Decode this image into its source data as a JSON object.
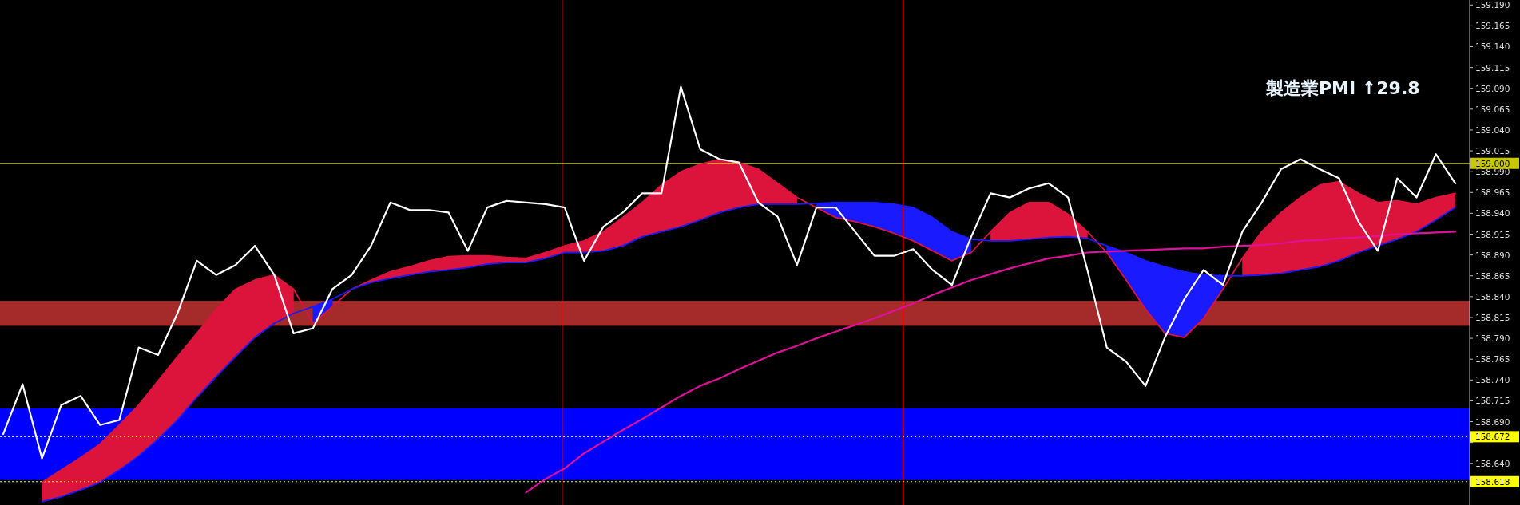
{
  "chart_data": {
    "type": "line",
    "tick_labels": "y",
    "categories": [
      null,
      null,
      null,
      null,
      null,
      null,
      null,
      null,
      null,
      null,
      null,
      null,
      null,
      null,
      null,
      null,
      null,
      null,
      null,
      null,
      null,
      null,
      null,
      null,
      null,
      null,
      null,
      null,
      null,
      null,
      null,
      null,
      null,
      null,
      null,
      null,
      null,
      null,
      null,
      null,
      null,
      null,
      null,
      null,
      null,
      null,
      null,
      null,
      null,
      null,
      null,
      null,
      null,
      null,
      null,
      null,
      null,
      null,
      null,
      null,
      null,
      null,
      null,
      null,
      null,
      null,
      null,
      null,
      null,
      null,
      null,
      null,
      null,
      null,
      null,
      null
    ],
    "ylim": [
      158.59,
      159.196
    ],
    "yticks": [
      {
        "value": 158.64,
        "label": "158.640"
      },
      {
        "value": 158.665,
        "label": null
      },
      {
        "value": 158.69,
        "label": "158.690"
      },
      {
        "value": 158.715,
        "label": "158.715"
      },
      {
        "value": 158.74,
        "label": "158.740"
      },
      {
        "value": 158.765,
        "label": "158.765"
      },
      {
        "value": 158.79,
        "label": "158.790"
      },
      {
        "value": 158.815,
        "label": "158.815"
      },
      {
        "value": 158.84,
        "label": "158.840"
      },
      {
        "value": 158.865,
        "label": "158.865"
      },
      {
        "value": 158.89,
        "label": "158.890"
      },
      {
        "value": 158.915,
        "label": "158.915"
      },
      {
        "value": 158.94,
        "label": "158.940"
      },
      {
        "value": 158.965,
        "label": "158.965"
      },
      {
        "value": 158.99,
        "label": "158.990"
      },
      {
        "value": 159.015,
        "label": "159.015"
      },
      {
        "value": 159.04,
        "label": "159.040"
      },
      {
        "value": 159.065,
        "label": "159.065"
      },
      {
        "value": 159.09,
        "label": "159.090"
      },
      {
        "value": 159.115,
        "label": "159.115"
      },
      {
        "value": 159.14,
        "label": "159.140"
      },
      {
        "value": 159.165,
        "label": "159.165"
      },
      {
        "value": 159.19,
        "label": "159.190"
      }
    ],
    "bands": [
      {
        "axis": "y",
        "from": 158.805,
        "to": 158.835,
        "color": "#a52a2a"
      },
      {
        "axis": "y",
        "from": 158.62,
        "to": 158.677,
        "color": "#0000ff"
      },
      {
        "axis": "y",
        "from": 158.677,
        "to": 158.706,
        "color": "#0000ff"
      }
    ],
    "ref_lines": [
      {
        "axis": "y",
        "value": 159.0,
        "label": "159.000",
        "color": "#c8c800",
        "line_style": "solid"
      },
      {
        "axis": "y",
        "value": 158.672,
        "label": "158.672",
        "color": "#ffff00",
        "line_style": "dotted"
      },
      {
        "axis": "y",
        "value": 158.618,
        "label": "158.618",
        "color": "#ffff00",
        "line_style": "dotted"
      }
    ],
    "annotations": [
      "製造業PMI ↑29.8"
    ],
    "series": [
      {
        "color": "#dc143c",
        "values": [
          null,
          null,
          158.617,
          158.632,
          158.647,
          158.663,
          158.686,
          158.71,
          158.739,
          158.768,
          158.796,
          158.825,
          158.849,
          158.86,
          158.866,
          158.849,
          158.808,
          158.828,
          158.849,
          158.86,
          158.87,
          158.876,
          158.883,
          158.888,
          158.889,
          158.889,
          158.887,
          158.886,
          158.893,
          158.901,
          158.907,
          158.918,
          158.935,
          158.953,
          158.974,
          158.99,
          158.999,
          159.005,
          159.001,
          158.993,
          158.976,
          158.959,
          158.947,
          158.935,
          158.93,
          158.924,
          158.916,
          158.907,
          158.895,
          158.883,
          158.893,
          158.918,
          158.941,
          158.953,
          158.953,
          158.939,
          158.918,
          158.893,
          158.86,
          158.825,
          158.796,
          158.791,
          158.814,
          158.849,
          158.886,
          158.918,
          158.941,
          158.959,
          158.974,
          158.978,
          158.964,
          158.953,
          158.955,
          158.951,
          158.959,
          158.964
        ],
        "upper": [
          null,
          null,
          158.617,
          158.632,
          158.647,
          158.663,
          158.686,
          158.71,
          158.739,
          158.768,
          158.796,
          158.825,
          158.849,
          158.86,
          158.866,
          158.849,
          null,
          null,
          158.849,
          158.86,
          158.87,
          158.876,
          158.883,
          158.888,
          158.889,
          158.889,
          158.887,
          158.886,
          158.893,
          158.901,
          158.907,
          158.918,
          158.935,
          158.953,
          158.974,
          158.99,
          158.999,
          159.005,
          159.001,
          158.993,
          158.976,
          158.959,
          null,
          null,
          null,
          null,
          null,
          null,
          null,
          null,
          null,
          158.918,
          158.941,
          158.953,
          158.953,
          158.939,
          158.918,
          null,
          null,
          null,
          null,
          null,
          null,
          null,
          158.886,
          158.918,
          158.941,
          158.959,
          158.974,
          158.978,
          158.964,
          158.953,
          158.955,
          158.951,
          158.959,
          158.964
        ],
        "lower": [
          null,
          null,
          158.594,
          158.6,
          158.608,
          158.617,
          158.632,
          158.649,
          158.669,
          158.692,
          158.719,
          158.744,
          158.768,
          158.791,
          158.808,
          158.82,
          null,
          null,
          158.849,
          158.857,
          158.862,
          158.866,
          158.87,
          158.872,
          158.875,
          158.879,
          158.881,
          158.881,
          158.886,
          158.893,
          158.893,
          158.895,
          158.901,
          158.912,
          158.918,
          158.924,
          158.932,
          158.941,
          158.947,
          158.951,
          158.951,
          158.951,
          null,
          null,
          null,
          null,
          null,
          null,
          null,
          null,
          null,
          158.907,
          158.907,
          158.909,
          158.911,
          158.912,
          158.91,
          null,
          null,
          null,
          null,
          null,
          null,
          null,
          158.865,
          158.866,
          158.868,
          158.872,
          158.876,
          158.883,
          158.893,
          158.901,
          158.909,
          158.918,
          158.932,
          158.947
        ]
      },
      {
        "color": "#1a1aff",
        "values": [
          null,
          null,
          158.594,
          158.6,
          158.608,
          158.617,
          158.632,
          158.649,
          158.669,
          158.692,
          158.719,
          158.744,
          158.768,
          158.791,
          158.808,
          158.82,
          158.828,
          158.837,
          158.849,
          158.857,
          158.862,
          158.866,
          158.87,
          158.872,
          158.875,
          158.879,
          158.881,
          158.881,
          158.886,
          158.893,
          158.893,
          158.895,
          158.901,
          158.912,
          158.918,
          158.924,
          158.932,
          158.941,
          158.947,
          158.951,
          158.951,
          158.951,
          158.952,
          158.953,
          158.953,
          158.953,
          158.951,
          158.947,
          158.935,
          158.918,
          158.909,
          158.907,
          158.907,
          158.909,
          158.911,
          158.912,
          158.91,
          158.901,
          158.893,
          158.883,
          158.876,
          158.87,
          158.866,
          158.865,
          158.865,
          158.866,
          158.868,
          158.872,
          158.876,
          158.883,
          158.893,
          158.901,
          158.909,
          158.918,
          158.932,
          158.947
        ],
        "upper": [
          null,
          null,
          null,
          null,
          null,
          null,
          null,
          null,
          null,
          null,
          null,
          null,
          null,
          null,
          null,
          null,
          158.828,
          158.837,
          null,
          null,
          null,
          null,
          null,
          null,
          null,
          null,
          null,
          null,
          null,
          null,
          null,
          null,
          null,
          null,
          null,
          null,
          null,
          null,
          null,
          null,
          null,
          null,
          158.952,
          158.953,
          158.953,
          158.953,
          158.951,
          158.947,
          158.935,
          158.918,
          158.909,
          null,
          null,
          null,
          null,
          null,
          null,
          158.901,
          158.893,
          158.883,
          158.876,
          158.87,
          158.866,
          158.865,
          null,
          null,
          null,
          null,
          null,
          null,
          null,
          null,
          null,
          null,
          null,
          null
        ],
        "lower": [
          null,
          null,
          null,
          null,
          null,
          null,
          null,
          null,
          null,
          null,
          null,
          null,
          null,
          null,
          null,
          null,
          158.808,
          158.828,
          null,
          null,
          null,
          null,
          null,
          null,
          null,
          null,
          null,
          null,
          null,
          null,
          null,
          null,
          null,
          null,
          null,
          null,
          null,
          null,
          null,
          null,
          null,
          null,
          158.947,
          158.935,
          158.93,
          158.924,
          158.916,
          158.907,
          158.895,
          158.883,
          158.893,
          null,
          null,
          null,
          null,
          null,
          null,
          158.893,
          158.86,
          158.825,
          158.796,
          158.791,
          158.814,
          158.849,
          null,
          null,
          null,
          null,
          null,
          null,
          null,
          null,
          null,
          null,
          null,
          null
        ]
      },
      {
        "color": "#e0109a",
        "values": [
          null,
          null,
          null,
          null,
          null,
          null,
          null,
          null,
          null,
          null,
          null,
          null,
          null,
          null,
          null,
          null,
          null,
          null,
          null,
          null,
          null,
          null,
          null,
          null,
          null,
          null,
          null,
          158.605,
          158.621,
          158.634,
          158.652,
          158.666,
          158.68,
          158.693,
          158.707,
          158.721,
          158.733,
          158.742,
          158.753,
          158.763,
          158.773,
          158.781,
          158.79,
          158.798,
          158.806,
          158.814,
          158.823,
          158.832,
          158.842,
          158.851,
          158.86,
          158.867,
          158.874,
          158.88,
          158.886,
          158.889,
          158.893,
          158.894,
          158.895,
          158.896,
          158.897,
          158.898,
          158.898,
          158.9,
          158.901,
          158.902,
          158.904,
          158.907,
          158.908,
          158.91,
          158.911,
          158.913,
          158.915,
          158.916,
          158.917,
          158.918
        ]
      },
      {
        "color": "#ffffff",
        "values": [
          158.675,
          158.735,
          158.646,
          158.71,
          158.721,
          158.686,
          158.692,
          158.779,
          158.77,
          158.82,
          158.883,
          158.866,
          158.878,
          158.901,
          158.866,
          158.796,
          158.802,
          158.849,
          158.866,
          158.901,
          158.953,
          158.944,
          158.944,
          158.941,
          158.895,
          158.947,
          158.955,
          158.953,
          158.951,
          158.947,
          158.883,
          158.924,
          158.941,
          158.964,
          158.964,
          159.092,
          159.017,
          159.005,
          159.001,
          158.953,
          158.936,
          158.878,
          158.947,
          158.947,
          158.918,
          158.889,
          158.889,
          158.897,
          158.872,
          158.854,
          158.912,
          158.964,
          158.959,
          158.97,
          158.976,
          158.959,
          158.872,
          158.779,
          158.762,
          158.733,
          158.791,
          158.837,
          158.872,
          158.854,
          158.918,
          158.953,
          158.993,
          159.005,
          158.993,
          158.982,
          158.93,
          158.895,
          158.982,
          158.959,
          159.011,
          158.976
        ]
      }
    ]
  }
}
